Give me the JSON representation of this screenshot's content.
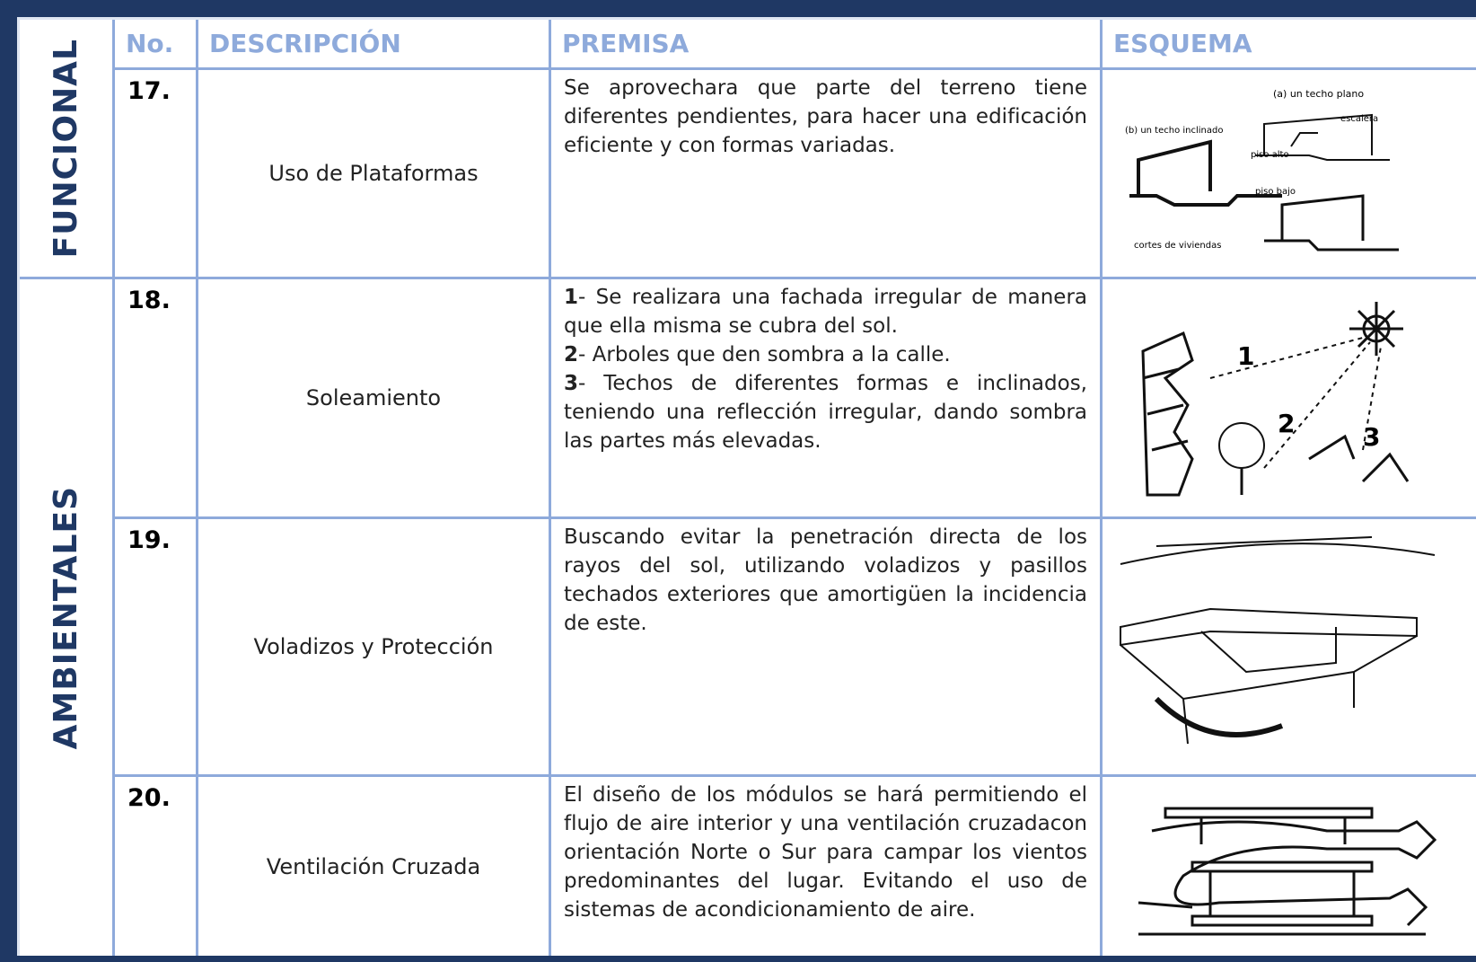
{
  "side_labels": [
    "FUNCIONAL",
    "AMBIENTALES"
  ],
  "header": [
    "No.",
    "DESCRIPCIÓN",
    "PREMISA",
    "ESQUEMA"
  ],
  "rows": [
    {
      "no": "17.",
      "descripcion": "Uso de Plataformas",
      "premisa": "Se aprovechara que parte del terreno tiene diferentes pendientes, para hacer una edificación eficiente y con formas variadas.",
      "esquema_labels": [
        "(a) un techo plano",
        "escalera",
        "(b) un techo inclinado",
        "piso alto",
        "piso bajo",
        "cortes de viviendas"
      ]
    },
    {
      "no": "18.",
      "descripcion": "Soleamiento",
      "premisa_items": [
        {
          "num": "1",
          "text": "- Se realizara una fachada irregular de manera que ella misma se cubra del sol."
        },
        {
          "num": "2",
          "text": "- Arboles que den sombra a la calle."
        },
        {
          "num": "3",
          "text": "- Techos de diferentes formas e inclinados, teniendo una reflección irregular, dando sombra las partes más elevadas."
        }
      ],
      "esquema_labels": [
        "1",
        "2",
        "3"
      ]
    },
    {
      "no": "19.",
      "descripcion": "Voladizos y Protección",
      "premisa": "Buscando evitar la penetración directa de los rayos del sol, utilizando voladizos y pasillos techados exteriores que amortigüen la incidencia de este."
    },
    {
      "no": "20.",
      "descripcion": "Ventilación Cruzada",
      "premisa": "El diseño de los módulos se hará permitiendo el flujo de aire interior y una ventilación cruzadacon orientación Norte o Sur para campar los vientos predominantes del lugar. Evitando el uso de sistemas de acondicionamiento de aire."
    }
  ]
}
